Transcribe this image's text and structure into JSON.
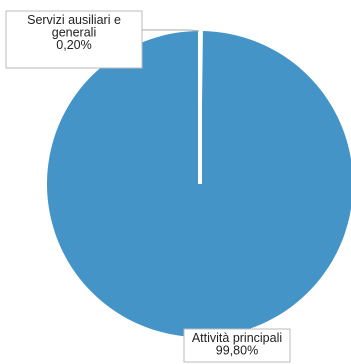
{
  "chart_data": {
    "type": "pie",
    "slices": [
      {
        "label": "Servizi ausiliari e generali",
        "label_lines": [
          "Servizi ausiliari e",
          "generali"
        ],
        "value_text": "0,20%",
        "value": 0.2
      },
      {
        "label": "Attività principali",
        "label_lines": [
          "Attività principali"
        ],
        "value_text": "99,80%",
        "value": 99.8
      }
    ],
    "colors": {
      "slice": "#4594c8",
      "separator": "#ffffff",
      "label_border": "#bbbbbb",
      "leader": "#aaaaaa"
    },
    "legend": "none"
  }
}
